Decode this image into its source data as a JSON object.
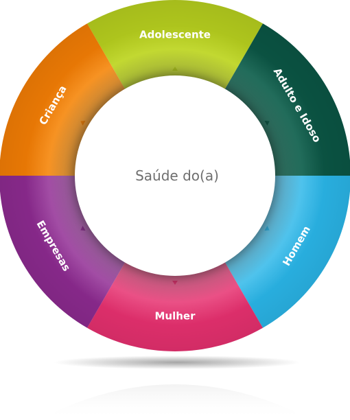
{
  "wheel": {
    "center_label": "Saúde do(a)",
    "segments": [
      {
        "id": "adolescente",
        "label": "Adolescente",
        "color": "#b4cc1e",
        "light": "#d4e84a"
      },
      {
        "id": "adulto-e-idoso",
        "label": "Adulto e Idoso",
        "color": "#0b5544",
        "light": "#3f8a78"
      },
      {
        "id": "homem",
        "label": "Homem",
        "color": "#2ab4e6",
        "light": "#7fd6f5"
      },
      {
        "id": "mulher",
        "label": "Mulher",
        "color": "#e4306e",
        "light": "#f27aa4"
      },
      {
        "id": "empresas",
        "label": "Empresas",
        "color": "#8b2a8e",
        "light": "#c07ac2"
      },
      {
        "id": "crianca",
        "label": "Criança",
        "color": "#f07c05",
        "light": "#ffb04a"
      }
    ]
  }
}
